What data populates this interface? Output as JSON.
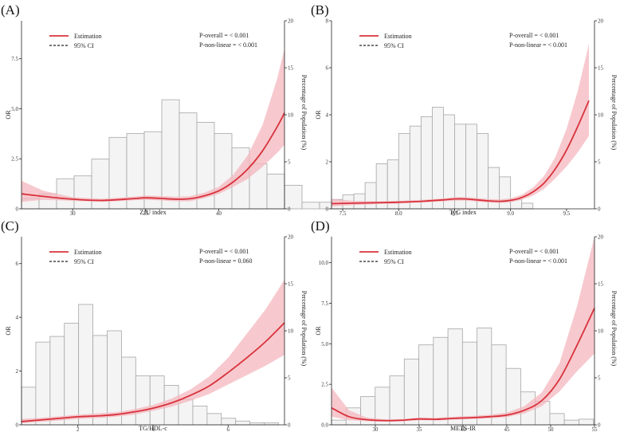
{
  "colors": {
    "estimate": "#d8323c",
    "ci_band": "#f4b7bd",
    "bar_fill": "#f4f4f4",
    "bar_stroke": "#a6a6a6",
    "axis": "#222222"
  },
  "chart_data": [
    {
      "type": "bar",
      "panel_label": "(A)",
      "xlabel": "ZJU index",
      "ylabel": "OR",
      "y2label": "Percentage of Population (%)",
      "legend": {
        "estimate": "Estimation",
        "ci": "95% CI",
        "position": "top-left"
      },
      "annotations": [
        "P-overall = < 0.001",
        "P-non-linear = < 0.001"
      ],
      "xlim": [
        26.5,
        44.5
      ],
      "xticks": [
        30,
        35,
        40
      ],
      "xticklabels": [
        "30",
        "35",
        "40"
      ],
      "ylim": [
        0,
        9.4
      ],
      "yticks": [
        0,
        2.5,
        5.0,
        7.5
      ],
      "yticklabels": [
        "0",
        "2.5",
        "5.0",
        "7.5"
      ],
      "y2lim": [
        0,
        20
      ],
      "y2ticks": [
        0,
        5,
        10,
        15,
        20
      ],
      "y2ticklabels": [
        "0",
        "5",
        "10",
        "15",
        "20"
      ],
      "bins": {
        "start": 26.5,
        "width": 1.2,
        "values": [
          1.1,
          1.6,
          3.2,
          3.5,
          5.3,
          7.6,
          8.0,
          8.2,
          11.6,
          10.2,
          9.2,
          8.0,
          6.5,
          4.8,
          3.7,
          2.5,
          0.7,
          0.7
        ]
      },
      "curve": {
        "x": [
          26.5,
          28,
          30,
          32,
          34,
          35,
          36,
          37,
          38,
          39,
          40,
          41,
          42,
          43,
          44,
          44.5
        ],
        "y": [
          0.75,
          0.62,
          0.48,
          0.42,
          0.5,
          0.55,
          0.52,
          0.48,
          0.5,
          0.65,
          0.9,
          1.35,
          2.0,
          2.9,
          4.1,
          4.8
        ]
      },
      "ci_upper": [
        1.4,
        0.9,
        0.58,
        0.5,
        0.6,
        0.66,
        0.64,
        0.6,
        0.63,
        0.8,
        1.1,
        1.7,
        2.7,
        4.2,
        6.5,
        8.0
      ],
      "ci_lower": [
        0.35,
        0.45,
        0.4,
        0.35,
        0.42,
        0.45,
        0.42,
        0.38,
        0.38,
        0.52,
        0.74,
        1.1,
        1.5,
        2.1,
        2.8,
        3.2
      ]
    },
    {
      "type": "bar",
      "panel_label": "(B)",
      "xlabel": "TyG index",
      "ylabel": "OR",
      "y2label": "Percentage of Population (%)",
      "legend": {
        "estimate": "Estimation",
        "ci": "95% CI",
        "position": "top-left"
      },
      "annotations": [
        "P-overall = < 0.001",
        "P-non-linear = < 0.001"
      ],
      "xlim": [
        7.4,
        9.75
      ],
      "xticks": [
        7.5,
        8.0,
        8.5,
        9.0,
        9.5
      ],
      "xticklabels": [
        "7.5",
        "8.0",
        "8.5",
        "9.0",
        "9.5"
      ],
      "ylim": [
        0,
        8
      ],
      "yticks": [
        0,
        2,
        4,
        6,
        8
      ],
      "yticklabels": [
        "0",
        "2",
        "4",
        "6",
        "8"
      ],
      "y2lim": [
        0,
        20
      ],
      "y2ticks": [
        0,
        5,
        10,
        15,
        20
      ],
      "y2ticklabels": [
        "0",
        "5",
        "10",
        "15",
        "20"
      ],
      "bins": {
        "start": 7.4,
        "width": 0.1,
        "values": [
          1.0,
          1.5,
          1.6,
          2.8,
          4.8,
          5.2,
          8.0,
          8.8,
          9.8,
          10.8,
          10.0,
          9.0,
          9.0,
          8.0,
          4.4,
          3.4,
          1.0,
          0.6
        ]
      },
      "curve": {
        "x": [
          7.4,
          7.6,
          7.8,
          8.0,
          8.2,
          8.4,
          8.5,
          8.6,
          8.7,
          8.8,
          8.9,
          9.0,
          9.1,
          9.2,
          9.3,
          9.4,
          9.5,
          9.6,
          9.7
        ],
        "y": [
          0.22,
          0.24,
          0.26,
          0.28,
          0.32,
          0.38,
          0.42,
          0.42,
          0.38,
          0.34,
          0.32,
          0.36,
          0.48,
          0.72,
          1.1,
          1.7,
          2.5,
          3.5,
          4.6
        ]
      },
      "ci_upper": [
        0.42,
        0.34,
        0.32,
        0.34,
        0.38,
        0.44,
        0.5,
        0.5,
        0.46,
        0.42,
        0.4,
        0.45,
        0.6,
        0.9,
        1.4,
        2.2,
        3.4,
        5.0,
        7.0
      ],
      "ci_lower": [
        0.1,
        0.16,
        0.2,
        0.22,
        0.27,
        0.32,
        0.35,
        0.35,
        0.31,
        0.27,
        0.25,
        0.28,
        0.38,
        0.56,
        0.85,
        1.3,
        1.8,
        2.4,
        3.1
      ]
    },
    {
      "type": "bar",
      "panel_label": "(C)",
      "xlabel": "TG/HDL-c",
      "ylabel": "OR",
      "y2label": "Percentage of Population (%)",
      "legend": {
        "estimate": "Estimation",
        "ci": "95% CI",
        "position": "top-left"
      },
      "annotations": [
        "P-overall = < 0.001",
        "P-non-linear = 0.060"
      ],
      "xlim": [
        0.5,
        7.5
      ],
      "xticks": [
        2,
        4,
        6
      ],
      "xticklabels": [
        "2",
        "4",
        "6"
      ],
      "ylim": [
        0,
        7
      ],
      "yticks": [
        0,
        2,
        4,
        6
      ],
      "yticklabels": [
        "0",
        "2",
        "4",
        "6"
      ],
      "y2lim": [
        0,
        20
      ],
      "y2ticks": [
        0,
        5,
        10,
        15,
        20
      ],
      "y2ticklabels": [
        "0",
        "5",
        "10",
        "15",
        "20"
      ],
      "bins": {
        "start": 0.5,
        "width": 0.38,
        "values": [
          4.0,
          8.8,
          9.4,
          10.8,
          12.8,
          9.5,
          10.0,
          7.2,
          5.2,
          5.2,
          4.2,
          2.7,
          2.0,
          1.2,
          0.7,
          0.4,
          0.2,
          0.2
        ]
      },
      "curve": {
        "x": [
          0.5,
          1.0,
          1.5,
          2.0,
          2.5,
          3.0,
          3.5,
          4.0,
          4.5,
          5.0,
          5.5,
          6.0,
          6.5,
          7.0,
          7.5
        ],
        "y": [
          0.12,
          0.18,
          0.24,
          0.3,
          0.33,
          0.38,
          0.48,
          0.62,
          0.82,
          1.1,
          1.45,
          1.95,
          2.5,
          3.1,
          3.8
        ]
      },
      "ci_upper": [
        0.22,
        0.26,
        0.32,
        0.38,
        0.42,
        0.47,
        0.58,
        0.74,
        0.98,
        1.32,
        1.8,
        2.5,
        3.4,
        4.3,
        5.4
      ],
      "ci_lower": [
        0.06,
        0.11,
        0.16,
        0.22,
        0.25,
        0.3,
        0.38,
        0.52,
        0.68,
        0.9,
        1.15,
        1.5,
        1.85,
        2.2,
        2.6
      ]
    },
    {
      "type": "bar",
      "panel_label": "(D)",
      "xlabel": "METS-IR",
      "ylabel": "OR",
      "y2label": "Percentage of Population (%)",
      "legend": {
        "estimate": "Estimation",
        "ci": "95% CI",
        "position": "top-left"
      },
      "annotations": [
        "P-overall = < 0.001",
        "P-non-linear = < 0.001"
      ],
      "xlim": [
        25,
        55
      ],
      "xticks": [
        30,
        35,
        40,
        45,
        50,
        55
      ],
      "xticklabels": [
        "30",
        "35",
        "40",
        "45",
        "50",
        "55"
      ],
      "ylim": [
        0,
        11.6
      ],
      "yticks": [
        0,
        2.5,
        5.0,
        7.5,
        10.0
      ],
      "yticklabels": [
        "0.0",
        "2.5",
        "5.0",
        "7.5",
        "10.0"
      ],
      "y2lim": [
        0,
        20
      ],
      "y2ticks": [
        0,
        5,
        10,
        15,
        20
      ],
      "y2ticklabels": [
        "0",
        "5",
        "10",
        "15",
        "20"
      ],
      "bins": {
        "start": 25,
        "width": 1.66,
        "values": [
          0.5,
          1.8,
          3.0,
          4.0,
          5.2,
          7.0,
          8.5,
          9.3,
          10.2,
          8.8,
          10.3,
          8.5,
          6.0,
          3.5,
          2.5,
          1.2,
          0.5,
          0.6
        ]
      },
      "curve": {
        "x": [
          25,
          27,
          29,
          31,
          33,
          35,
          37,
          39,
          41,
          43,
          45,
          47,
          49,
          51,
          53,
          55
        ],
        "y": [
          1.05,
          0.5,
          0.32,
          0.26,
          0.28,
          0.36,
          0.34,
          0.4,
          0.44,
          0.5,
          0.6,
          0.9,
          1.5,
          2.8,
          4.9,
          7.2
        ]
      },
      "ci_upper": [
        2.3,
        0.9,
        0.45,
        0.34,
        0.35,
        0.45,
        0.44,
        0.5,
        0.55,
        0.62,
        0.75,
        1.15,
        2.0,
        3.8,
        7.3,
        12.0
      ],
      "ci_lower": [
        0.5,
        0.28,
        0.22,
        0.2,
        0.22,
        0.28,
        0.27,
        0.32,
        0.35,
        0.4,
        0.48,
        0.7,
        1.15,
        2.05,
        3.3,
        4.4
      ]
    }
  ]
}
